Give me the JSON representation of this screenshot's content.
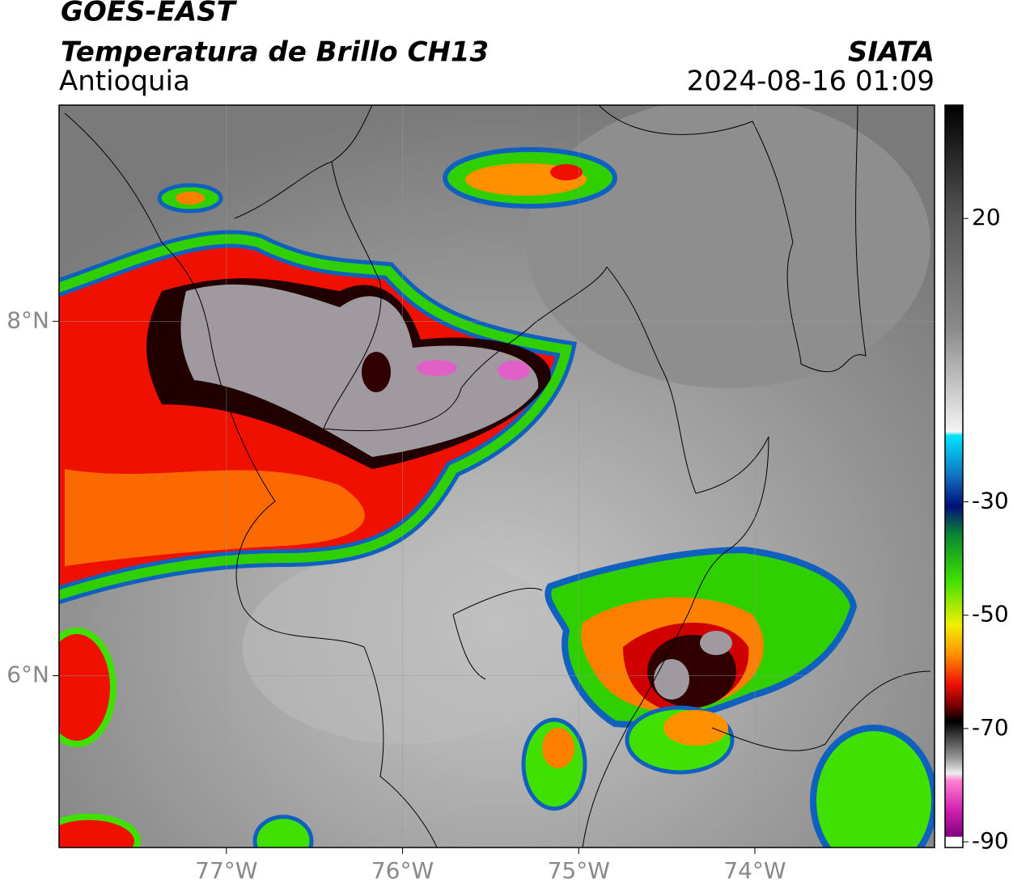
{
  "header": {
    "title": "GOES-EAST",
    "subtitle": "Temperatura de Brillo CH13",
    "region": "Antioquia",
    "source": "SIATA",
    "datetime": "2024-08-16 01:09"
  },
  "map": {
    "xlim": [
      -77.95,
      -72.98
    ],
    "ylim": [
      5.03,
      9.22
    ],
    "xticks": [
      {
        "value": -77,
        "label": "77°W"
      },
      {
        "value": -76,
        "label": "76°W"
      },
      {
        "value": -75,
        "label": "75°W"
      },
      {
        "value": -74,
        "label": "74°W"
      }
    ],
    "yticks": [
      {
        "value": 8,
        "label": "8°N"
      },
      {
        "value": 6,
        "label": "6°N"
      }
    ]
  },
  "colorbar": {
    "lim": [
      -91,
      40
    ],
    "ticks": [
      20,
      -30,
      -50,
      -70,
      -90
    ]
  }
}
